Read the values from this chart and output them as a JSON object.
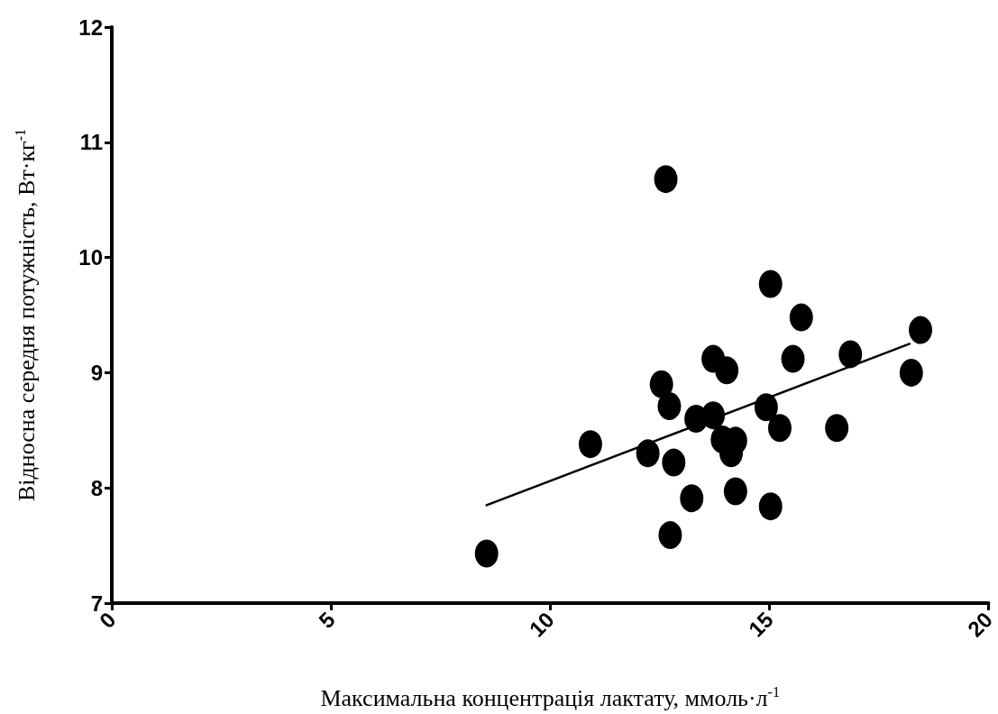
{
  "chart_data": {
    "type": "scatter",
    "xlabel": "Максимальна концентрація лактату, ммоль·л$^{-1}$",
    "ylabel": "Відносна середня потужність, Вт·кг$^{-1}$",
    "xlim": [
      0,
      20
    ],
    "xticks": [
      0,
      5,
      10,
      15,
      20
    ],
    "ylim": [
      7,
      12
    ],
    "yticks": [
      7,
      8,
      9,
      10,
      11,
      12
    ],
    "grid": false,
    "marker": "circle",
    "series": [
      {
        "color": "#000000",
        "x": [
          8.55,
          10.92,
          12.23,
          12.54,
          12.72,
          12.82,
          13.23,
          12.74,
          13.33,
          13.72,
          13.72,
          14.03,
          13.93,
          14.23,
          14.13,
          14.23,
          14.93,
          15.24,
          15.03,
          15.54,
          16.85,
          16.54,
          18.24,
          18.45,
          15.03,
          15.73,
          12.64
        ],
        "values": [
          7.43,
          8.38,
          8.3,
          8.9,
          8.71,
          8.22,
          7.91,
          7.59,
          8.6,
          8.63,
          9.12,
          9.02,
          8.42,
          8.41,
          8.3,
          7.97,
          8.7,
          8.52,
          7.84,
          9.12,
          9.16,
          8.52,
          9.0,
          9.37,
          9.77,
          9.48,
          10.68
        ]
      },
      {
        "type": "line",
        "color": "#000000",
        "marker": "none",
        "line_style": "solid",
        "x": [
          8.55,
          18.2
        ],
        "values": [
          7.85,
          9.25
        ]
      }
    ]
  }
}
